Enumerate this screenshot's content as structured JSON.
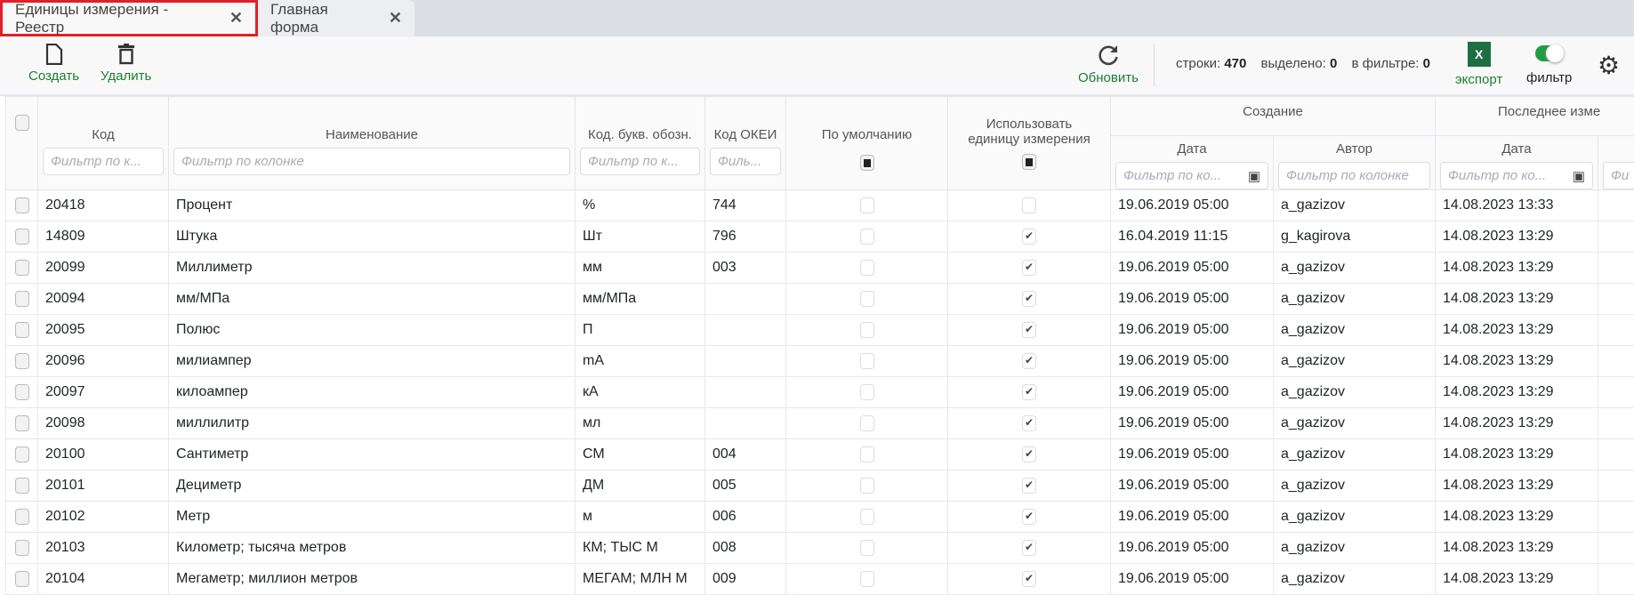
{
  "tabs": [
    {
      "label": "Единицы измерения - Реестр",
      "active": true
    },
    {
      "label": "Главная форма",
      "active": false
    }
  ],
  "toolbar": {
    "create": "Создать",
    "delete": "Удалить",
    "refresh": "Обновить",
    "export": "экспорт",
    "filter": "фильтр",
    "filter_on": true,
    "stats": {
      "rows_label": "строки:",
      "rows": "470",
      "selected_label": "выделено:",
      "selected": "0",
      "in_filter_label": "в фильтре:",
      "in_filter": "0"
    }
  },
  "accent": "#1e7e34",
  "grid": {
    "groups": {
      "creation": "Создание",
      "last_change": "Последнее изме"
    },
    "columns": {
      "code": "Код",
      "name": "Наименование",
      "letter": "Код. букв. обозн.",
      "okei": "Код ОКЕИ",
      "default": "По умолчанию",
      "use": "Использовать единицу измерения",
      "c_date": "Дата",
      "c_author": "Автор",
      "m_date": "Дата"
    },
    "filters": {
      "short": "Фильтр по к...",
      "full": "Фильтр по колонке",
      "letter": "Фильтр по к...",
      "okei": "Филь...",
      "date": "Фильтр по ко...",
      "next": "Фи"
    },
    "rows": [
      {
        "code": "20418",
        "name": "Процент",
        "letter": "%",
        "okei": "744",
        "def": false,
        "use": false,
        "cdate": "19.06.2019 05:00",
        "author": "a_gazizov",
        "mdate": "14.08.2023 13:33"
      },
      {
        "code": "14809",
        "name": "Штука",
        "letter": "Шт",
        "okei": "796",
        "def": false,
        "use": true,
        "cdate": "16.04.2019 11:15",
        "author": "g_kagirova",
        "mdate": "14.08.2023 13:29"
      },
      {
        "code": "20099",
        "name": "Миллиметр",
        "letter": "мм",
        "okei": "003",
        "def": false,
        "use": true,
        "cdate": "19.06.2019 05:00",
        "author": "a_gazizov",
        "mdate": "14.08.2023 13:29"
      },
      {
        "code": "20094",
        "name": "мм/МПа",
        "letter": "мм/МПа",
        "okei": "",
        "def": false,
        "use": true,
        "cdate": "19.06.2019 05:00",
        "author": "a_gazizov",
        "mdate": "14.08.2023 13:29"
      },
      {
        "code": "20095",
        "name": "Полюс",
        "letter": "П",
        "okei": "",
        "def": false,
        "use": true,
        "cdate": "19.06.2019 05:00",
        "author": "a_gazizov",
        "mdate": "14.08.2023 13:29"
      },
      {
        "code": "20096",
        "name": "милиампер",
        "letter": "mA",
        "okei": "",
        "def": false,
        "use": true,
        "cdate": "19.06.2019 05:00",
        "author": "a_gazizov",
        "mdate": "14.08.2023 13:29"
      },
      {
        "code": "20097",
        "name": "килоампер",
        "letter": "кА",
        "okei": "",
        "def": false,
        "use": true,
        "cdate": "19.06.2019 05:00",
        "author": "a_gazizov",
        "mdate": "14.08.2023 13:29"
      },
      {
        "code": "20098",
        "name": "миллилитр",
        "letter": "мл",
        "okei": "",
        "def": false,
        "use": true,
        "cdate": "19.06.2019 05:00",
        "author": "a_gazizov",
        "mdate": "14.08.2023 13:29"
      },
      {
        "code": "20100",
        "name": "Сантиметр",
        "letter": "СМ",
        "okei": "004",
        "def": false,
        "use": true,
        "cdate": "19.06.2019 05:00",
        "author": "a_gazizov",
        "mdate": "14.08.2023 13:29"
      },
      {
        "code": "20101",
        "name": "Дециметр",
        "letter": "ДМ",
        "okei": "005",
        "def": false,
        "use": true,
        "cdate": "19.06.2019 05:00",
        "author": "a_gazizov",
        "mdate": "14.08.2023 13:29"
      },
      {
        "code": "20102",
        "name": "Метр",
        "letter": "м",
        "okei": "006",
        "def": false,
        "use": true,
        "cdate": "19.06.2019 05:00",
        "author": "a_gazizov",
        "mdate": "14.08.2023 13:29"
      },
      {
        "code": "20103",
        "name": "Километр; тысяча метров",
        "letter": "КМ; ТЫС М",
        "okei": "008",
        "def": false,
        "use": true,
        "cdate": "19.06.2019 05:00",
        "author": "a_gazizov",
        "mdate": "14.08.2023 13:29"
      },
      {
        "code": "20104",
        "name": "Мегаметр; миллион метров",
        "letter": "МЕГАМ; МЛН М",
        "okei": "009",
        "def": false,
        "use": true,
        "cdate": "19.06.2019 05:00",
        "author": "a_gazizov",
        "mdate": "14.08.2023 13:29"
      }
    ]
  }
}
